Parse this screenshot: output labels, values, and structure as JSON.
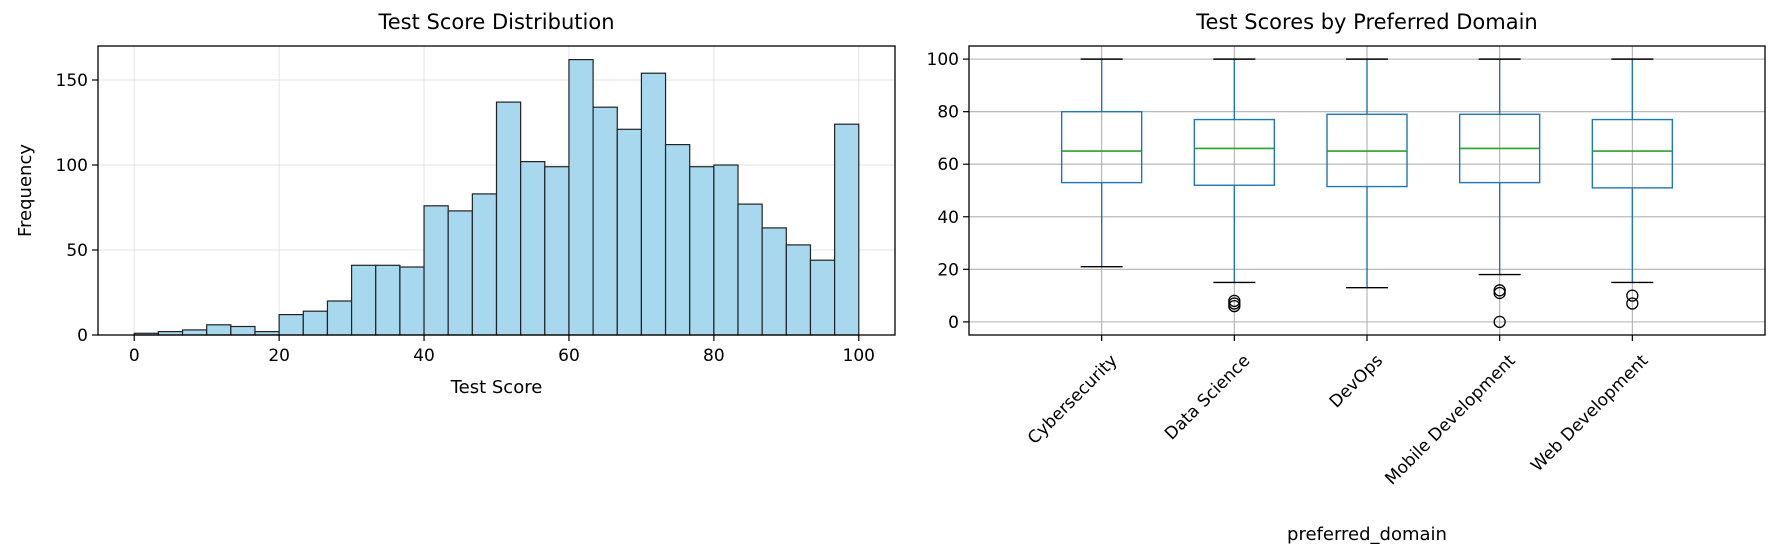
{
  "chart_data": [
    {
      "type": "histogram",
      "title": "Test Score Distribution",
      "xlabel": "Test Score",
      "ylabel": "Frequency",
      "xlim": [
        -5,
        105
      ],
      "ylim": [
        0,
        170
      ],
      "xticks": [
        "0",
        "20",
        "40",
        "60",
        "80",
        "100"
      ],
      "yticks": [
        "0",
        "50",
        "100",
        "150"
      ],
      "grid": true,
      "bar_color": "#a8d8ee",
      "edge_color": "#222222",
      "bins": [
        0,
        3.333,
        6.667,
        10,
        13.333,
        16.667,
        20,
        23.333,
        26.667,
        30,
        33.333,
        36.667,
        40,
        43.333,
        46.667,
        50,
        53.333,
        56.667,
        60,
        63.333,
        66.667,
        70,
        73.333,
        76.667,
        80,
        83.333,
        86.667,
        90,
        93.333,
        96.667,
        100
      ],
      "counts": [
        1,
        2,
        3,
        6,
        5,
        2,
        12,
        14,
        20,
        41,
        41,
        40,
        76,
        73,
        83,
        137,
        102,
        99,
        162,
        134,
        121,
        154,
        112,
        99,
        100,
        77,
        63,
        53,
        44,
        124
      ]
    },
    {
      "type": "box",
      "title": "Test Scores by Preferred Domain",
      "xlabel": "preferred_domain",
      "ylabel": "",
      "ylim": [
        -5,
        105
      ],
      "yticks": [
        "0",
        "20",
        "40",
        "60",
        "80",
        "100"
      ],
      "grid": true,
      "box_color": "#1f77b4",
      "median_color": "#2ca02c",
      "categories": [
        "Cybersecurity",
        "Data Science",
        "DevOps",
        "Mobile Development",
        "Web Development"
      ],
      "boxes": [
        {
          "whisker_low": 21,
          "q1": 53,
          "median": 65,
          "q3": 80,
          "whisker_high": 100,
          "outliers": []
        },
        {
          "whisker_low": 15,
          "q1": 52,
          "median": 66,
          "q3": 77,
          "whisker_high": 100,
          "outliers": [
            6,
            7,
            8
          ]
        },
        {
          "whisker_low": 13,
          "q1": 51.5,
          "median": 65,
          "q3": 79,
          "whisker_high": 100,
          "outliers": []
        },
        {
          "whisker_low": 18,
          "q1": 53,
          "median": 66,
          "q3": 79,
          "whisker_high": 100,
          "outliers": [
            0,
            11,
            12
          ]
        },
        {
          "whisker_low": 15,
          "q1": 51,
          "median": 65,
          "q3": 77,
          "whisker_high": 100,
          "outliers": [
            7,
            10
          ]
        }
      ]
    }
  ]
}
